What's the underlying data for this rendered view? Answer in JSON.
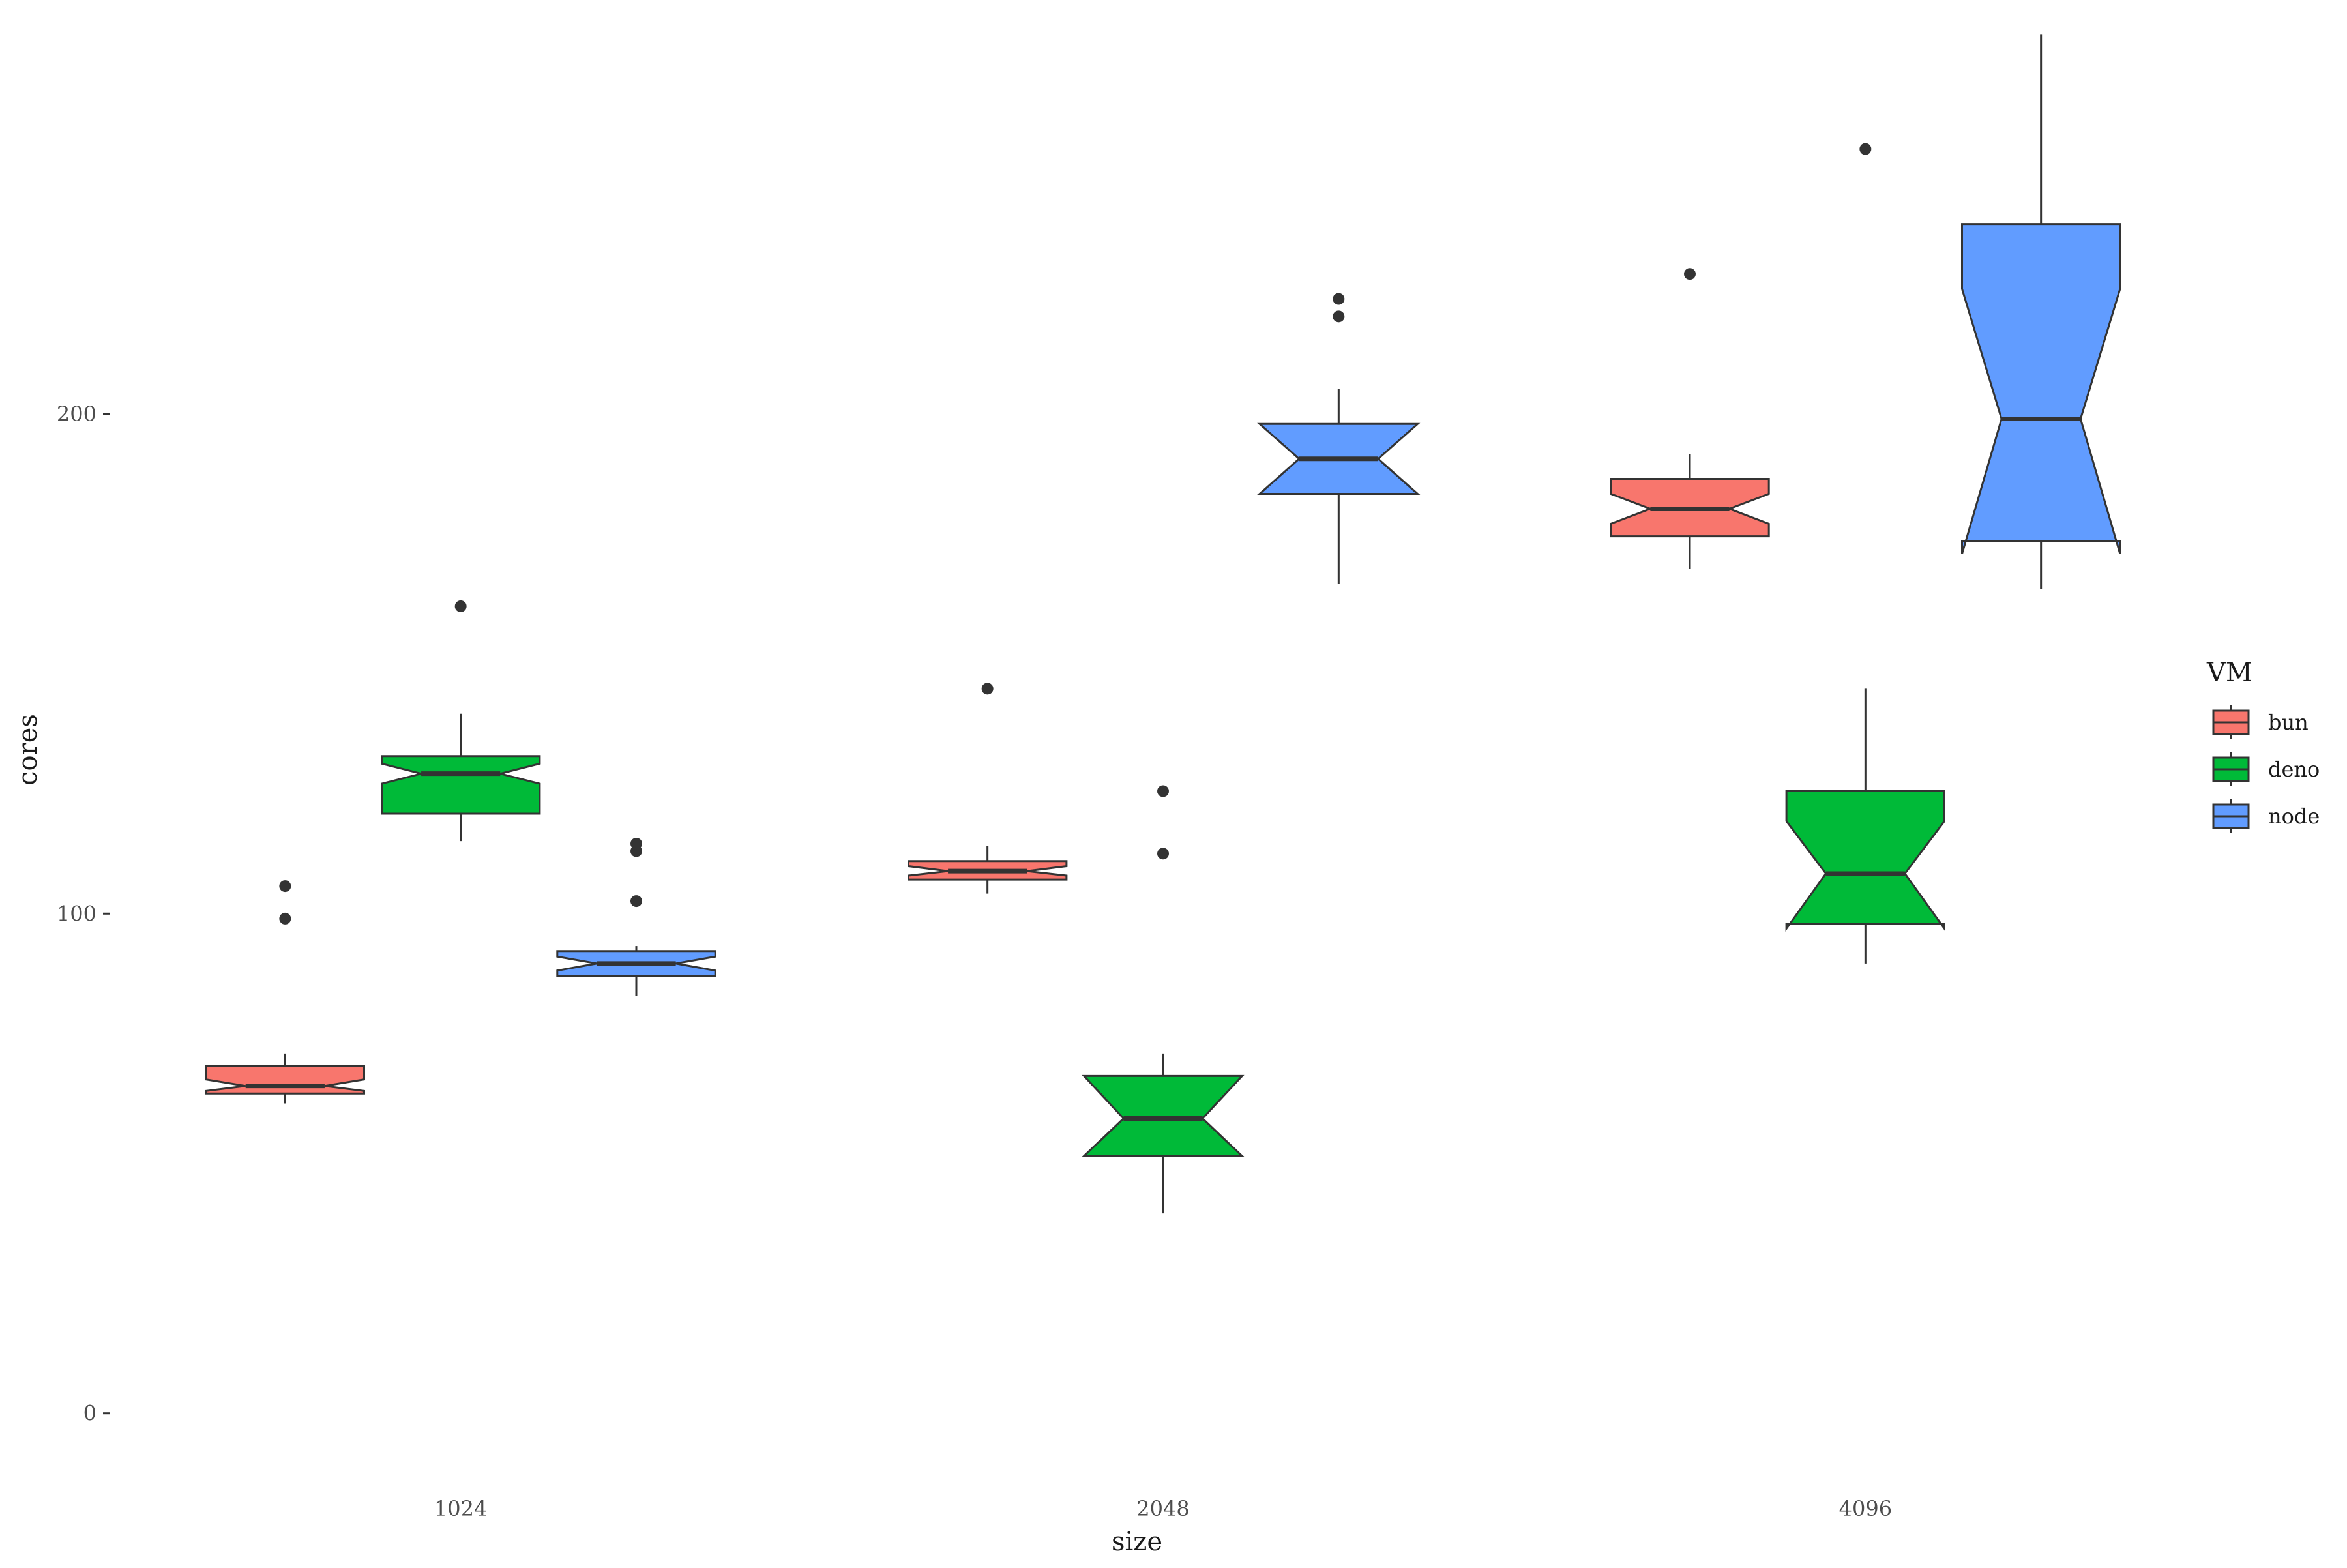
{
  "chart_data": {
    "type": "boxplot",
    "notched": true,
    "xlabel": "size",
    "ylabel": "cores",
    "categories": [
      "1024",
      "2048",
      "4096"
    ],
    "ylim": [
      -14,
      275
    ],
    "yticks": [
      0,
      100,
      200
    ],
    "ytick_labels": [
      "0",
      "100",
      "200"
    ],
    "grid": false,
    "legend": {
      "title": "VM",
      "placement": "right"
    },
    "series": [
      {
        "name": "bun",
        "color": "#F8766D",
        "boxes": [
          {
            "category": "1024",
            "whisker_low": 62,
            "q1": 64,
            "median": 65.5,
            "q3": 69.5,
            "whisker_high": 72,
            "notch_low": 64.5,
            "notch_high": 66.8,
            "outliers": [
              99,
              105.5
            ]
          },
          {
            "category": "2048",
            "whisker_low": 104,
            "q1": 106.8,
            "median": 108.5,
            "q3": 110.5,
            "whisker_high": 113.5,
            "notch_low": 107.6,
            "notch_high": 109.5,
            "outliers": [
              145
            ]
          },
          {
            "category": "4096",
            "whisker_low": 169,
            "q1": 175.5,
            "median": 181,
            "q3": 187,
            "whisker_high": 192,
            "notch_low": 178,
            "notch_high": 184,
            "outliers": [
              228
            ]
          }
        ]
      },
      {
        "name": "deno",
        "color": "#00BA38",
        "boxes": [
          {
            "category": "1024",
            "whisker_low": 114.5,
            "q1": 120,
            "median": 128,
            "q3": 131.5,
            "whisker_high": 140,
            "notch_low": 126,
            "notch_high": 130,
            "outliers": [
              161.5
            ]
          },
          {
            "category": "2048",
            "whisker_low": 40,
            "q1": 51.5,
            "median": 59,
            "q3": 67.5,
            "whisker_high": 72,
            "notch_low": 51.5,
            "notch_high": 67.5,
            "outliers": [
              112,
              124.5
            ]
          },
          {
            "category": "4096",
            "whisker_low": 90,
            "q1": 98,
            "median": 108,
            "q3": 124.5,
            "whisker_high": 145,
            "notch_low": 97,
            "notch_high": 118.5,
            "outliers": [
              253
            ]
          }
        ]
      },
      {
        "name": "node",
        "color": "#619CFF",
        "boxes": [
          {
            "category": "1024",
            "whisker_low": 83.5,
            "q1": 87.5,
            "median": 90,
            "q3": 92.5,
            "whisker_high": 93.5,
            "notch_low": 88.6,
            "notch_high": 91.4,
            "outliers": [
              102.5,
              112.5,
              114
            ]
          },
          {
            "category": "2048",
            "whisker_low": 166,
            "q1": 184,
            "median": 191,
            "q3": 198,
            "whisker_high": 205,
            "notch_low": 184,
            "notch_high": 198,
            "outliers": [
              219.5,
              223
            ]
          },
          {
            "category": "4096",
            "whisker_low": 165,
            "q1": 174.5,
            "median": 199,
            "q3": 238,
            "whisker_high": 276,
            "notch_low": 172,
            "notch_high": 225
          }
        ]
      }
    ]
  }
}
